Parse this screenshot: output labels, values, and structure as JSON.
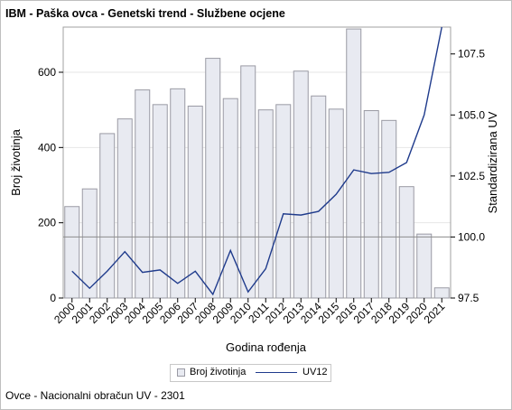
{
  "title": "IBM - Paška ovca - Genetski trend - Službene ocjene",
  "footer": "Ovce - Nacionalni obračun UV - 2301",
  "legend": {
    "bar_label": "Broj životinja",
    "line_label": "UV12"
  },
  "colors": {
    "bar_fill": "#e8eaf1",
    "bar_stroke": "#9a9aa4",
    "line": "#1f3b8c",
    "reference_line": "#8c8c8c",
    "grid": "#e6e6e6"
  },
  "chart_data": {
    "type": "bar",
    "xlabel": "Godina rođenja",
    "ylabel": "Broj životinja",
    "y2label": "Standardizirana UV",
    "ylim": [
      0,
      720
    ],
    "y2lim": [
      97.5,
      108.6
    ],
    "yticks": [
      0,
      200,
      400,
      600
    ],
    "y2ticks": [
      "97.5",
      "100.0",
      "102.5",
      "105.0",
      "107.5"
    ],
    "reference_y2": 100.0,
    "grid": true,
    "legend_position": "bottom",
    "categories": [
      "2000",
      "2001",
      "2002",
      "2003",
      "2004",
      "2005",
      "2006",
      "2007",
      "2008",
      "2009",
      "2010",
      "2011",
      "2012",
      "2013",
      "2014",
      "2015",
      "2016",
      "2017",
      "2018",
      "2019",
      "2020",
      "2021"
    ],
    "series": [
      {
        "name": "Broj životinja",
        "type": "bar",
        "axis": "left",
        "values": [
          243,
          290,
          437,
          476,
          553,
          514,
          556,
          510,
          637,
          530,
          617,
          500,
          514,
          603,
          537,
          502,
          715,
          498,
          472,
          296,
          170,
          27
        ]
      },
      {
        "name": "UV12",
        "type": "line",
        "axis": "right",
        "values": [
          98.6,
          97.9,
          98.6,
          99.4,
          98.55,
          98.65,
          98.1,
          98.6,
          97.65,
          99.45,
          97.75,
          98.7,
          100.95,
          100.9,
          101.05,
          101.75,
          102.75,
          102.6,
          102.65,
          103.05,
          105.0,
          108.6
        ]
      }
    ]
  }
}
